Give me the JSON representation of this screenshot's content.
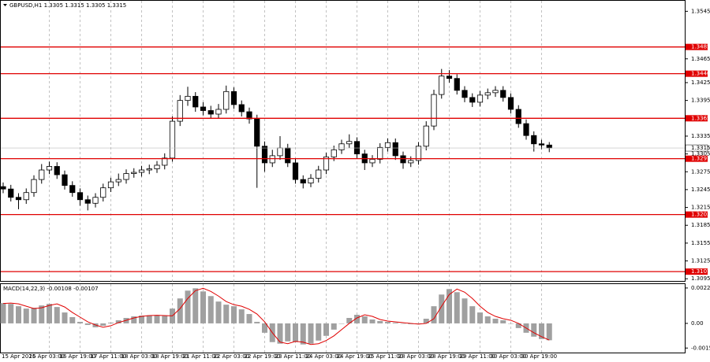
{
  "chart_data": {
    "type": "candlestick",
    "title": "GBPUSD,H1  1.3305 1.3315 1.3305 1.3315",
    "categories": [
      "15 Apr 2025",
      null,
      null,
      null,
      null,
      null,
      "16 Apr 03:00",
      null,
      null,
      null,
      "16 Apr 19:00",
      null,
      null,
      null,
      "17 Apr 11:00",
      null,
      null,
      null,
      "18 Apr 03:00",
      null,
      null,
      null,
      "18 Apr 19:00",
      null,
      null,
      null,
      "21 Apr 11:00",
      null,
      null,
      null,
      "22 Apr 03:00",
      null,
      null,
      null,
      "22 Apr 19:00",
      null,
      null,
      null,
      "23 Apr 11:00",
      null,
      null,
      null,
      "24 Apr 03:00",
      null,
      null,
      null,
      "24 Apr 19:00",
      null,
      null,
      null,
      "25 Apr 11:00",
      null,
      null,
      null,
      "28 Apr 03:00",
      null,
      null,
      null,
      "28 Apr 19:00",
      null,
      null,
      null,
      "29 Apr 11:00",
      null,
      null,
      null,
      "30 Apr 03:00",
      null,
      null,
      null,
      "30 Apr 19:00",
      null
    ],
    "open": [
      1.325,
      1.3246,
      1.3232,
      1.3228,
      1.324,
      1.3262,
      1.3278,
      1.3284,
      1.327,
      1.3252,
      1.324,
      1.3228,
      1.3222,
      1.3232,
      1.3248,
      1.3258,
      1.3262,
      1.3272,
      1.3274,
      1.3278,
      1.328,
      1.3286,
      1.3298,
      1.336,
      1.3395,
      1.3402,
      1.3384,
      1.3378,
      1.3372,
      1.338,
      1.341,
      1.3388,
      1.3376,
      1.3364,
      1.3318,
      1.329,
      1.3302,
      1.3315,
      1.329,
      1.3262,
      1.3256,
      1.3264,
      1.3278,
      1.33,
      1.3312,
      1.3322,
      1.3326,
      1.3305,
      1.329,
      1.3296,
      1.3316,
      1.3324,
      1.3302,
      1.329,
      1.3294,
      1.3318,
      1.3352,
      1.3405,
      1.3436,
      1.3432,
      1.3412,
      1.34,
      1.3392,
      1.3404,
      1.3408,
      1.3412,
      1.34,
      1.338,
      1.3356,
      1.3336,
      1.3322,
      1.332
    ],
    "high": [
      1.3257,
      1.3253,
      1.3239,
      1.3247,
      1.3269,
      1.3288,
      1.3292,
      1.3291,
      1.3277,
      1.3259,
      1.3247,
      1.3235,
      1.3239,
      1.3255,
      1.3265,
      1.3272,
      1.3279,
      1.3281,
      1.3285,
      1.3287,
      1.3293,
      1.3306,
      1.3368,
      1.3404,
      1.3418,
      1.3409,
      1.3392,
      1.3386,
      1.3389,
      1.342,
      1.3417,
      1.3395,
      1.3383,
      1.3371,
      1.3326,
      1.3312,
      1.3335,
      1.3322,
      1.3297,
      1.3269,
      1.3271,
      1.3285,
      1.3307,
      1.3319,
      1.3329,
      1.3338,
      1.3333,
      1.3312,
      1.3303,
      1.3323,
      1.3331,
      1.3331,
      1.3309,
      1.3301,
      1.3325,
      1.336,
      1.3413,
      1.3448,
      1.3446,
      1.3439,
      1.3419,
      1.3407,
      1.3411,
      1.3415,
      1.3419,
      1.3419,
      1.3407,
      1.3387,
      1.3363,
      1.3343,
      1.3329,
      1.3325
    ],
    "low": [
      1.3239,
      1.3225,
      1.3212,
      1.3221,
      1.3233,
      1.3255,
      1.3271,
      1.3263,
      1.3245,
      1.3233,
      1.3218,
      1.321,
      1.3215,
      1.3225,
      1.3241,
      1.3251,
      1.3255,
      1.3265,
      1.3267,
      1.3271,
      1.3273,
      1.3279,
      1.3292,
      1.3352,
      1.3386,
      1.3376,
      1.337,
      1.3364,
      1.3365,
      1.3373,
      1.3381,
      1.3368,
      1.3356,
      1.3248,
      1.3275,
      1.3283,
      1.3295,
      1.3283,
      1.3255,
      1.3247,
      1.3249,
      1.3257,
      1.3271,
      1.3293,
      1.3305,
      1.3315,
      1.3298,
      1.3278,
      1.3283,
      1.3289,
      1.3309,
      1.3295,
      1.328,
      1.3283,
      1.3287,
      1.3311,
      1.3345,
      1.3398,
      1.3425,
      1.3405,
      1.3392,
      1.3384,
      1.3385,
      1.3397,
      1.3401,
      1.3393,
      1.3373,
      1.3349,
      1.3329,
      1.3309,
      1.3313,
      1.3308
    ],
    "close": [
      1.3246,
      1.3232,
      1.3228,
      1.324,
      1.3262,
      1.3278,
      1.3284,
      1.327,
      1.3252,
      1.324,
      1.3228,
      1.3222,
      1.3232,
      1.3248,
      1.3258,
      1.3262,
      1.3272,
      1.3274,
      1.3278,
      1.328,
      1.3286,
      1.3298,
      1.336,
      1.3395,
      1.3402,
      1.3384,
      1.3378,
      1.3372,
      1.338,
      1.341,
      1.3388,
      1.3376,
      1.3364,
      1.3318,
      1.329,
      1.3302,
      1.3315,
      1.329,
      1.3262,
      1.3256,
      1.3264,
      1.3278,
      1.33,
      1.3312,
      1.3322,
      1.3326,
      1.3305,
      1.329,
      1.3296,
      1.3316,
      1.3324,
      1.3302,
      1.329,
      1.3294,
      1.3318,
      1.3352,
      1.3405,
      1.3436,
      1.3432,
      1.3412,
      1.34,
      1.3392,
      1.3404,
      1.3408,
      1.3412,
      1.34,
      1.338,
      1.3356,
      1.3336,
      1.3322,
      1.332,
      1.3315
    ],
    "ylim": [
      1.309,
      1.3564
    ],
    "yticks": [
      1.3545,
      1.3465,
      1.3425,
      1.3395,
      1.3335,
      1.3305,
      1.3275,
      1.3245,
      1.3215,
      1.3185,
      1.3155,
      1.3125,
      1.3095
    ],
    "levels": [
      1.3485,
      {
        "value": 1.344,
        "label": "1.3440"
      },
      1.3365,
      1.3297,
      1.3203,
      1.3107
    ],
    "level_color": "#e00000",
    "current_price": 1.3315,
    "grid": true,
    "macd": {
      "title": "MACD(14,22,3) -0.00108 -0.00107",
      "histogram": [
        0.0013,
        0.00125,
        0.0011,
        0.00095,
        0.001,
        0.00115,
        0.00125,
        0.00105,
        0.0007,
        0.0004,
        0.0001,
        -0.0001,
        -0.00025,
        -0.00015,
        5e-05,
        0.0002,
        0.00035,
        0.00045,
        0.0005,
        0.00052,
        0.0005,
        0.00048,
        0.00095,
        0.0016,
        0.0021,
        0.00225,
        0.00205,
        0.00175,
        0.0014,
        0.0012,
        0.0011,
        0.0009,
        0.0006,
        0.0001,
        -0.0006,
        -0.0012,
        -0.0013,
        -0.00115,
        -0.0012,
        -0.00135,
        -0.0013,
        -0.0011,
        -0.0008,
        -0.0004,
        0,
        0.00035,
        0.00055,
        0.00045,
        0.00025,
        0.00015,
        0.0001,
        5e-05,
        0,
        -5e-05,
        0,
        0.0003,
        0.0011,
        0.00185,
        0.0022,
        0.002,
        0.0016,
        0.0011,
        0.0007,
        0.00045,
        0.0003,
        0.0002,
        0,
        -0.0003,
        -0.0006,
        -0.00085,
        -0.001,
        -0.00108
      ],
      "signal": [
        0.00128,
        0.0013,
        0.00125,
        0.0011,
        0.00095,
        0.001,
        0.00115,
        0.00125,
        0.00105,
        0.0007,
        0.0004,
        0.0001,
        -0.0001,
        -0.00025,
        -0.00015,
        5e-05,
        0.0002,
        0.00035,
        0.00045,
        0.0005,
        0.00052,
        0.0005,
        0.00048,
        0.00095,
        0.0016,
        0.0021,
        0.00225,
        0.00205,
        0.00175,
        0.0014,
        0.0012,
        0.0011,
        0.0009,
        0.0006,
        0.0001,
        -0.0006,
        -0.0012,
        -0.0013,
        -0.00115,
        -0.0012,
        -0.00135,
        -0.0013,
        -0.0011,
        -0.0008,
        -0.0004,
        0,
        0.00035,
        0.00055,
        0.00045,
        0.00025,
        0.00015,
        0.0001,
        5e-05,
        0,
        -5e-05,
        0,
        0.0003,
        0.0011,
        0.00185,
        0.0022,
        0.002,
        0.0016,
        0.0011,
        0.0007,
        0.00045,
        0.0003,
        0.0002,
        0,
        -0.0003,
        -0.0006,
        -0.00085,
        -0.00107
      ],
      "histogram_color": "#a0a0a0",
      "signal_color": "#e00000",
      "ylim": [
        -0.00187,
        0.00257
      ],
      "yticks": [
        0.00227,
        {
          "value": 0,
          "label": "0.00"
        },
        -0.00158
      ]
    }
  }
}
